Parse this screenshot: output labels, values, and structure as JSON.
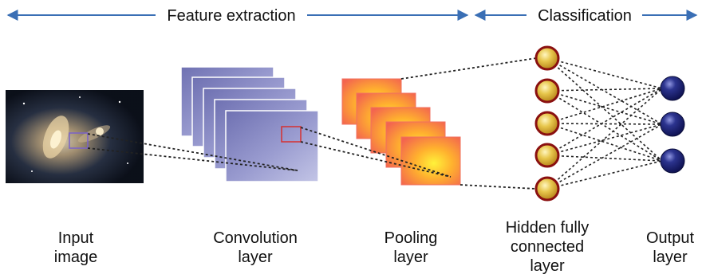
{
  "header": {
    "feature_extraction": "Feature extraction",
    "classification": "Classification"
  },
  "labels": {
    "input": "Input\nimage",
    "convolution": "Convolution\nlayer",
    "pooling": "Pooling\nlayer",
    "hidden": "Hidden fully\nconnected\nlayer",
    "output": "Output\nlayer"
  },
  "structure": {
    "convolution_feature_maps": 5,
    "pooling_feature_maps": 5,
    "hidden_neurons": 5,
    "output_neurons": 3
  },
  "colors": {
    "arrow": "#3a6fb5",
    "conv_map_light": "#b9bcdf",
    "conv_map_dark": "#6f71b2",
    "pool_map_center": "#ffe13a",
    "pool_map_edge": "#f36a55",
    "hidden_neuron_fill": "#e8cc55",
    "hidden_neuron_ring": "#8a1010",
    "output_neuron_fill": "#1c237a",
    "connection": "#222222",
    "input_patch": "#7a62c9",
    "conv_patch": "#d63030"
  }
}
